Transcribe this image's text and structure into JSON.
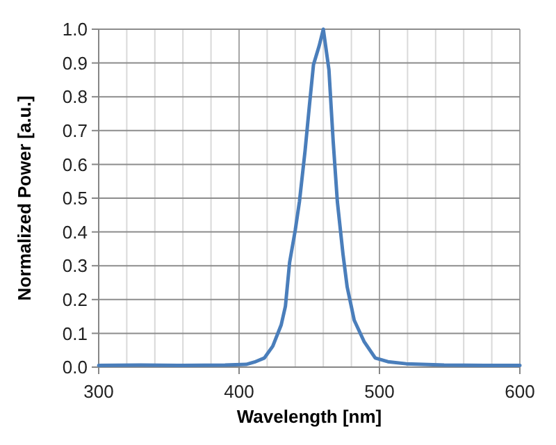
{
  "chart_data": {
    "type": "line",
    "xlabel": "Wavelength [nm]",
    "ylabel": "Normalized Power [a.u.]",
    "xlim": [
      300,
      600
    ],
    "ylim": [
      0,
      1
    ],
    "xticks": [
      300,
      {
        "value": 320,
        "label": null
      },
      {
        "value": 340,
        "label": null
      },
      {
        "value": 360,
        "label": null
      },
      {
        "value": 380,
        "label": null
      },
      400,
      {
        "value": 420,
        "label": null
      },
      {
        "value": 440,
        "label": null
      },
      {
        "value": 460,
        "label": null
      },
      {
        "value": 480,
        "label": null
      },
      500,
      {
        "value": 520,
        "label": null
      },
      {
        "value": 540,
        "label": null
      },
      {
        "value": 560,
        "label": null
      },
      {
        "value": 580,
        "label": null
      },
      600
    ],
    "yticks": [
      {
        "value": 0,
        "label": "0.0"
      },
      {
        "value": 0.1,
        "label": "0.1"
      },
      {
        "value": 0.2,
        "label": "0.2"
      },
      {
        "value": 0.3,
        "label": "0.3"
      },
      {
        "value": 0.4,
        "label": "0.4"
      },
      {
        "value": 0.5,
        "label": "0.5"
      },
      {
        "value": 0.6,
        "label": "0.6"
      },
      {
        "value": 0.7,
        "label": "0.7"
      },
      {
        "value": 0.8,
        "label": "0.8"
      },
      {
        "value": 0.9,
        "label": "0.9"
      },
      {
        "value": 1,
        "label": "1.0"
      }
    ],
    "grid": true,
    "marker": "none",
    "line_style": "solid",
    "series": [
      {
        "color": "#4a7ebb",
        "x": [
          300,
          330,
          360,
          390,
          405,
          411,
          418,
          424,
          430,
          433,
          436,
          440,
          443,
          447,
          450,
          453,
          457,
          460,
          464,
          467,
          470,
          474,
          477,
          482,
          489,
          497,
          506,
          519,
          546,
          575,
          600
        ],
        "values": [
          0.005,
          0.006,
          0.005,
          0.006,
          0.008,
          0.015,
          0.027,
          0.062,
          0.125,
          0.18,
          0.31,
          0.405,
          0.49,
          0.64,
          0.77,
          0.895,
          0.95,
          1.0,
          0.88,
          0.67,
          0.49,
          0.335,
          0.237,
          0.139,
          0.076,
          0.027,
          0.016,
          0.01,
          0.006,
          0.005,
          0.005
        ]
      }
    ]
  }
}
